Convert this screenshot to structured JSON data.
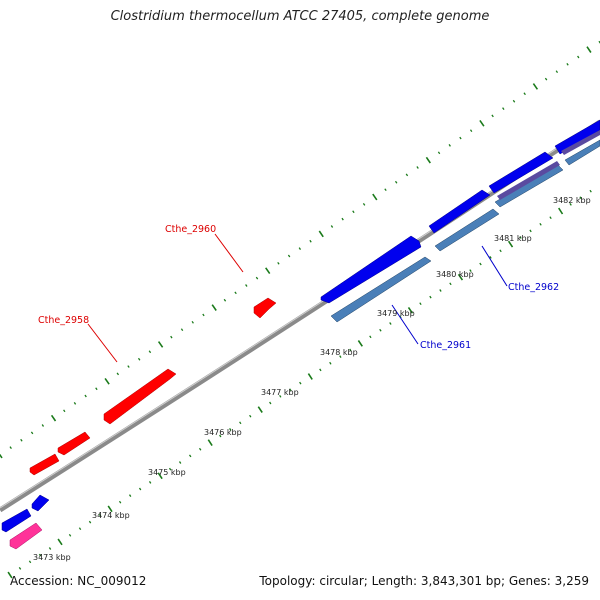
{
  "title": "Clostridium thermocellum ATCC 27405, complete genome",
  "footer": {
    "accession": "Accession: NC_009012",
    "summary": "Topology: circular; Length: 3,843,301 bp; Genes: 3,259"
  },
  "colors": {
    "backbone": "#8a8a8a",
    "tick": "#1a7a1a",
    "forward_gene": "#ff0000",
    "reverse_gene": "#0000ee",
    "reverse_gene_alt": "#4a7fb8",
    "rna_gene": "#ff3399",
    "misc_feature": "#5a4aa0",
    "forward_label": "#dd0000",
    "reverse_label": "#0000cc"
  },
  "ruler": {
    "unit": "kbp",
    "tick_labels": [
      "3473 kbp",
      "3474 kbp",
      "3475 kbp",
      "3476 kbp",
      "3477 kbp",
      "3478 kbp",
      "3479 kbp",
      "3480 kbp",
      "3481 kbp",
      "3482 kbp"
    ]
  },
  "gene_labels": [
    {
      "text": "Cthe_2958",
      "strand": "forward"
    },
    {
      "text": "Cthe_2960",
      "strand": "forward"
    },
    {
      "text": "Cthe_2961",
      "strand": "reverse"
    },
    {
      "text": "Cthe_2962",
      "strand": "reverse"
    }
  ]
}
